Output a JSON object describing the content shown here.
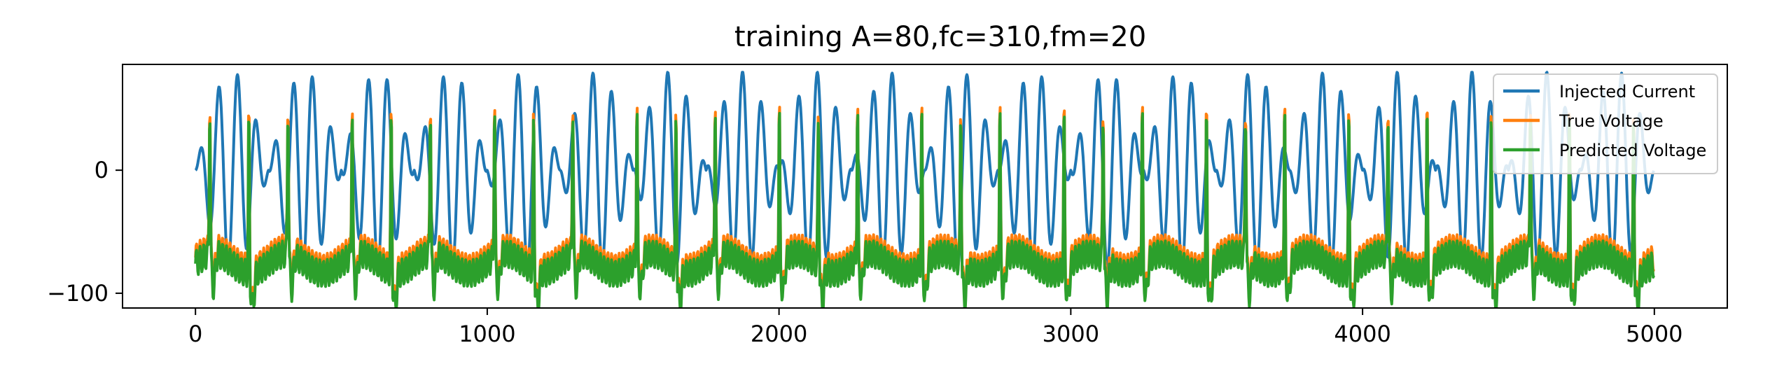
{
  "chart_data": {
    "type": "line",
    "title": "training A=80,fc=310,fm=20",
    "xlabel": "",
    "ylabel": "",
    "xlim": [
      -250,
      5250
    ],
    "ylim": [
      -112,
      86
    ],
    "xticks": [
      0,
      1000,
      2000,
      3000,
      4000,
      5000
    ],
    "xtick_labels": [
      "0",
      "1000",
      "2000",
      "3000",
      "4000",
      "5000"
    ],
    "yticks": [
      0,
      -100
    ],
    "ytick_labels": [
      "0",
      "−100"
    ],
    "grid": false,
    "legend_position": "upper-right",
    "sample_count": 5000,
    "injected_current": {
      "amplitude": 80,
      "carrier_cycles": 78,
      "beat_cycles": 20
    },
    "voltage_spike_steps": [
      48,
      182,
      316,
      536,
      670,
      804,
      1024,
      1158,
      1292,
      1512,
      1646,
      1780,
      2000,
      2134,
      2268,
      2488,
      2622,
      2756,
      2976,
      3110,
      3244,
      3464,
      3598,
      3732,
      3952,
      4086,
      4220,
      4440,
      4574,
      4708,
      4928
    ],
    "voltage_peak": 60,
    "voltage_baseline": -70,
    "voltage_trough": -100,
    "series": [
      {
        "name": "Injected Current",
        "color": "#1f77b4"
      },
      {
        "name": "True Voltage",
        "color": "#ff7f0e"
      },
      {
        "name": "Predicted Voltage",
        "color": "#2ca02c"
      }
    ]
  }
}
